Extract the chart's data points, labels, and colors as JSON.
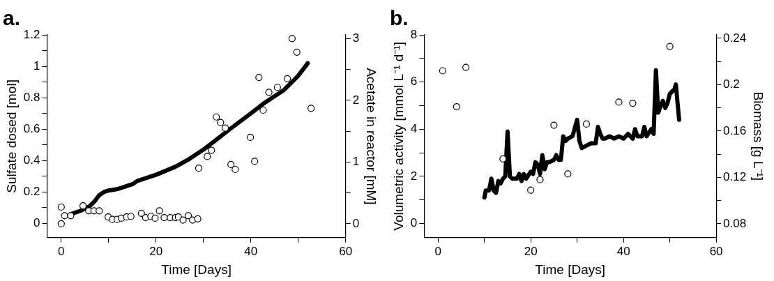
{
  "chart_data": [
    {
      "type": "line",
      "title": "a.",
      "xlabel": "Time [Days]",
      "ylabel": "Sulfate dosed [mol]",
      "y2label": "Acetate in reactor [mM]",
      "xlim": [
        -3,
        60
      ],
      "xticks": [
        0,
        {
          "value": 10,
          "label": null
        },
        20,
        {
          "value": 30,
          "label": null
        },
        40,
        {
          "value": 50,
          "label": null
        },
        60
      ],
      "ylim": [
        -0.09,
        1.2
      ],
      "yticks": [
        0,
        {
          "value": 0.1,
          "label": null
        },
        0.2,
        {
          "value": 0.3,
          "label": null
        },
        0.4,
        {
          "value": 0.5,
          "label": null
        },
        0.6,
        {
          "value": 0.7,
          "label": null
        },
        0.8,
        {
          "value": 0.9,
          "label": null
        },
        1,
        {
          "value": 1.1,
          "label": null
        },
        1.2
      ],
      "y2lim": [
        -0.225,
        3.06
      ],
      "y2ticks": [
        0,
        {
          "value": 0.5,
          "label": null
        },
        1,
        {
          "value": 1.5,
          "label": null
        },
        2,
        {
          "value": 2.5,
          "label": null
        },
        3
      ],
      "grid": false,
      "legend": false,
      "series": [
        {
          "type": "line",
          "color": "#000000",
          "marker": "none",
          "x": [
            2,
            4,
            6,
            7,
            8,
            9,
            10,
            12,
            14,
            15,
            16,
            20,
            24,
            27,
            30,
            33,
            36,
            40,
            43,
            46,
            47,
            48,
            50,
            52
          ],
          "values": [
            0.06,
            0.08,
            0.11,
            0.14,
            0.18,
            0.2,
            0.21,
            0.22,
            0.24,
            0.25,
            0.27,
            0.31,
            0.36,
            0.41,
            0.47,
            0.54,
            0.61,
            0.7,
            0.77,
            0.83,
            0.85,
            0.88,
            0.94,
            1.02
          ]
        },
        {
          "type": "scatter",
          "axis": "y2",
          "color": "#000000",
          "marker": "circle",
          "x": [
            0,
            0,
            0.7,
            2,
            4.6,
            5.8,
            6.9,
            8,
            9.9,
            10.8,
            11.8,
            12.7,
            13.8,
            14.7,
            16.9,
            17.8,
            18.9,
            19.8,
            20.7,
            21.7,
            23,
            24.1,
            24.7,
            25.7,
            26.8,
            27.7,
            28.8,
            29,
            30.8,
            31.7,
            32.7,
            33.6,
            34.6,
            35.8,
            36.7,
            39.9,
            40.8,
            41.7,
            42.6,
            43.8,
            45.6,
            47.7,
            48.7,
            49.7,
            52.7
          ],
          "values": [
            0.27,
            0,
            0.13,
            0.13,
            0.29,
            0.21,
            0.21,
            0.21,
            0.11,
            0.07,
            0.07,
            0.09,
            0.11,
            0.12,
            0.17,
            0.1,
            0.12,
            0.09,
            0.21,
            0.1,
            0.1,
            0.1,
            0.11,
            0.06,
            0.13,
            0.06,
            0.08,
            0.9,
            1.09,
            1.19,
            1.73,
            1.64,
            1.55,
            0.96,
            0.88,
            1.4,
            1.01,
            2.37,
            1.84,
            2.13,
            2.21,
            2.35,
            3.0,
            2.78,
            1.87
          ]
        }
      ]
    },
    {
      "type": "line",
      "title": "b.",
      "xlabel": "Time [Days]",
      "ylabel": "Volumetric activity [mmol L⁻¹ d⁻¹]",
      "y2label": "Biomass [g L⁻¹]",
      "xlim": [
        -3,
        60
      ],
      "xticks": [
        0,
        {
          "value": 10,
          "label": null
        },
        20,
        {
          "value": 30,
          "label": null
        },
        40,
        {
          "value": 50,
          "label": null
        },
        60
      ],
      "ylim": [
        -0.6,
        8
      ],
      "yticks": [
        0,
        {
          "value": 1,
          "label": null
        },
        2,
        {
          "value": 3,
          "label": null
        },
        4,
        {
          "value": 5,
          "label": null
        },
        6,
        {
          "value": 7,
          "label": null
        },
        8
      ],
      "y2lim": [
        0.068,
        0.243
      ],
      "y2ticks": [
        {
          "value": 0.08,
          "label": "0.08"
        },
        {
          "value": 0.1,
          "label": null
        },
        {
          "value": 0.12,
          "label": "0.12"
        },
        {
          "value": 0.14,
          "label": null
        },
        {
          "value": 0.16,
          "label": "0.16"
        },
        {
          "value": 0.18,
          "label": null
        },
        {
          "value": 0.2,
          "label": "0.2"
        },
        {
          "value": 0.22,
          "label": null
        },
        {
          "value": 0.24,
          "label": "0.24"
        }
      ],
      "grid": false,
      "legend": false,
      "series": [
        {
          "type": "line",
          "color": "#000000",
          "marker": "none",
          "x": [
            10,
            10.3,
            11,
            11.5,
            12,
            12.5,
            13,
            13.5,
            14,
            14.5,
            15,
            15.5,
            16,
            17,
            17.5,
            18,
            18.5,
            19,
            20,
            20.5,
            21,
            21.5,
            22,
            22.5,
            23,
            23.5,
            24,
            25,
            25.5,
            26,
            26.5,
            27,
            27.5,
            28,
            29,
            30,
            30.5,
            31,
            32,
            33,
            34,
            34.5,
            35,
            35.5,
            36,
            37,
            38,
            39,
            40,
            41,
            42,
            42.5,
            43,
            44,
            44.5,
            45,
            46,
            46.5,
            47,
            47.5,
            48,
            48.5,
            49,
            49.5,
            50,
            51,
            51.3,
            52
          ],
          "values": [
            1.1,
            1.4,
            1.4,
            1.9,
            1.4,
            1.3,
            1.8,
            1.7,
            1.9,
            2.0,
            3.9,
            2.0,
            1.9,
            1.9,
            2.1,
            1.8,
            2.1,
            1.9,
            2.2,
            2.1,
            2.6,
            2.5,
            2.1,
            2.9,
            2.3,
            2.6,
            2.6,
            2.7,
            2.9,
            2.7,
            2.7,
            3.7,
            3.5,
            3.6,
            3.7,
            4.4,
            3.5,
            3.2,
            3.3,
            3.4,
            3.4,
            4.1,
            3.8,
            3.6,
            3.6,
            3.7,
            3.6,
            3.7,
            3.6,
            3.8,
            3.6,
            4.0,
            3.7,
            3.7,
            4.1,
            3.7,
            4.0,
            3.8,
            6.5,
            4.7,
            5.0,
            5.2,
            4.9,
            5.1,
            5.5,
            5.7,
            5.9,
            4.4
          ]
        },
        {
          "type": "scatter",
          "axis": "y2",
          "color": "#000000",
          "marker": "circle",
          "x": [
            1,
            4,
            6,
            14,
            20,
            22,
            25,
            28,
            32,
            39,
            42,
            50
          ],
          "values": [
            0.212,
            0.181,
            0.215,
            0.136,
            0.109,
            0.118,
            0.165,
            0.123,
            0.166,
            0.185,
            0.184,
            0.233
          ]
        }
      ]
    }
  ]
}
